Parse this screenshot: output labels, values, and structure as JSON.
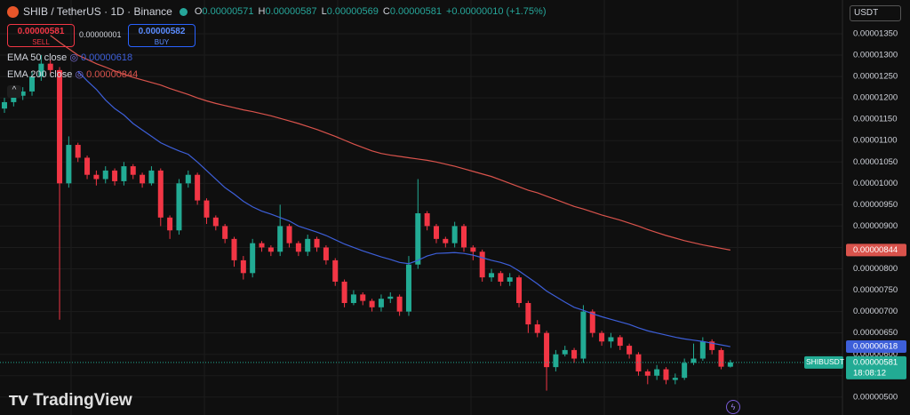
{
  "header": {
    "symbol": "SHIB / TetherUS · 1D · Binance",
    "o_label": "O",
    "open": "0.00000571",
    "h_label": "H",
    "high": "0.00000587",
    "l_label": "L",
    "low": "0.00000569",
    "c_label": "C",
    "close": "0.00000581",
    "change": "+0.00000010 (+1.75%)",
    "sell_price": "0.00000581",
    "sell": "SELL",
    "spread": "0.00000001",
    "buy_price": "0.00000582",
    "buy": "BUY",
    "currency": "USDT",
    "ticker": "SHIBUSDT",
    "last_price": "0.00000581",
    "countdown": "18:08:12",
    "brand": "TradingView"
  },
  "chart_data": {
    "type": "candlestick",
    "up_color": "#22ab94",
    "down_color": "#f23645",
    "grid": true,
    "open": [
      1.175e-05,
      1.19e-05,
      1.205e-05,
      1.215e-05,
      1.25e-05,
      1.28e-05,
      1.265e-05,
      1e-05,
      1.09e-05,
      1.06e-05,
      1.02e-05,
      1.01e-05,
      1.03e-05,
      1.005e-05,
      1.04e-05,
      1.02e-05,
      1e-05,
      1.03e-05,
      9.2e-06,
      8.9e-06,
      1e-05,
      1.02e-05,
      9.6e-06,
      9.2e-06,
      9e-06,
      8.7e-06,
      8.2e-06,
      7.9e-06,
      8.6e-06,
      8.5e-06,
      8.4e-06,
      9e-06,
      8.6e-06,
      8.4e-06,
      8.7e-06,
      8.5e-06,
      8.2e-06,
      7.7e-06,
      7.2e-06,
      7.4e-06,
      7.25e-06,
      7.1e-06,
      7.3e-06,
      7.35e-06,
      7e-06,
      8.1e-06,
      9.3e-06,
      9e-06,
      8.7e-06,
      8.6e-06,
      9e-06,
      8.5e-06,
      8.4e-06,
      7.8e-06,
      7.9e-06,
      7.7e-06,
      7.8e-06,
      7.2e-06,
      6.7e-06,
      6.5e-06,
      5.7e-06,
      6e-06,
      6.1e-06,
      5.9e-06,
      7e-06,
      6.5e-06,
      6.3e-06,
      6.4e-06,
      6.2e-06,
      6e-06,
      5.6e-06,
      5.5e-06,
      5.65e-06,
      5.4e-06,
      5.45e-06,
      5.8e-06,
      5.9e-06,
      6.3e-06,
      6.1e-06,
      5.71e-06
    ],
    "high": [
      1.2e-05,
      1.215e-05,
      1.225e-05,
      1.262e-05,
      1.3e-05,
      1.29e-05,
      1.272e-05,
      1.11e-05,
      1.095e-05,
      1.065e-05,
      1.03e-05,
      1.04e-05,
      1.035e-05,
      1.05e-05,
      1.045e-05,
      1.025e-05,
      1.04e-05,
      1.035e-05,
      9.25e-06,
      1.01e-05,
      1.03e-05,
      1.025e-05,
      9.65e-06,
      9.25e-06,
      9.05e-06,
      8.75e-06,
      8.3e-06,
      8.7e-06,
      8.65e-06,
      8.55e-06,
      9.5e-06,
      9.05e-06,
      8.65e-06,
      8.8e-06,
      8.75e-06,
      8.55e-06,
      8.25e-06,
      7.75e-06,
      7.5e-06,
      7.45e-06,
      7.3e-06,
      7.4e-06,
      7.45e-06,
      7.4e-06,
      8.3e-06,
      1.01e-05,
      9.35e-06,
      9.05e-06,
      8.75e-06,
      9.1e-06,
      9.05e-06,
      8.55e-06,
      8.45e-06,
      8e-06,
      7.95e-06,
      7.9e-06,
      7.85e-06,
      7.25e-06,
      6.8e-06,
      6.55e-06,
      6.1e-06,
      6.2e-06,
      6.15e-06,
      7.15e-06,
      7.05e-06,
      6.55e-06,
      6.5e-06,
      6.45e-06,
      6.25e-06,
      6.05e-06,
      5.65e-06,
      5.75e-06,
      5.7e-06,
      5.55e-06,
      5.9e-06,
      6.25e-06,
      6.4e-06,
      6.35e-06,
      6.15e-06,
      5.87e-06
    ],
    "low": [
      1.165e-05,
      1.18e-05,
      1.195e-05,
      1.205e-05,
      1.24e-05,
      1.255e-05,
      6.81e-06,
      9.9e-06,
      1.05e-05,
      1.01e-05,
      9.95e-06,
      1e-05,
      9.95e-06,
      9.95e-06,
      1.01e-05,
      9.9e-06,
      9.95e-06,
      9e-06,
      8.7e-06,
      8.8e-06,
      9.9e-06,
      9.5e-06,
      9.05e-06,
      8.9e-06,
      8.6e-06,
      8.05e-06,
      7.75e-06,
      7.8e-06,
      8.4e-06,
      8.3e-06,
      8.3e-06,
      8.5e-06,
      8.3e-06,
      8.3e-06,
      8.4e-06,
      8.1e-06,
      7.6e-06,
      7.1e-06,
      7.15e-06,
      7.15e-06,
      7e-06,
      7e-06,
      7.2e-06,
      6.9e-06,
      6.9e-06,
      8e-06,
      8.9e-06,
      8.6e-06,
      8.5e-06,
      8.5e-06,
      8.4e-06,
      8.2e-06,
      7.7e-06,
      7.7e-06,
      7.6e-06,
      7.6e-06,
      7.1e-06,
      6.5e-06,
      6.4e-06,
      5.15e-06,
      5.6e-06,
      5.95e-06,
      5.8e-06,
      5.8e-06,
      6.4e-06,
      6.2e-06,
      6.15e-06,
      6.1e-06,
      5.9e-06,
      5.5e-06,
      5.3e-06,
      5.4e-06,
      5.3e-06,
      5.3e-06,
      5.4e-06,
      5.75e-06,
      5.85e-06,
      6e-06,
      5.65e-06,
      5.69e-06
    ],
    "close": [
      1.19e-05,
      1.205e-05,
      1.215e-05,
      1.25e-05,
      1.28e-05,
      1.265e-05,
      1e-05,
      1.09e-05,
      1.06e-05,
      1.02e-05,
      1.01e-05,
      1.03e-05,
      1.005e-05,
      1.04e-05,
      1.02e-05,
      1e-05,
      1.03e-05,
      9.2e-06,
      8.9e-06,
      1e-05,
      1.02e-05,
      9.6e-06,
      9.2e-06,
      9e-06,
      8.7e-06,
      8.2e-06,
      7.9e-06,
      8.6e-06,
      8.5e-06,
      8.4e-06,
      9e-06,
      8.6e-06,
      8.4e-06,
      8.7e-06,
      8.5e-06,
      8.2e-06,
      7.7e-06,
      7.2e-06,
      7.4e-06,
      7.25e-06,
      7.1e-06,
      7.3e-06,
      7.35e-06,
      7e-06,
      8.1e-06,
      9.3e-06,
      9e-06,
      8.7e-06,
      8.6e-06,
      9e-06,
      8.5e-06,
      8.4e-06,
      7.8e-06,
      7.9e-06,
      7.7e-06,
      7.8e-06,
      7.2e-06,
      6.7e-06,
      6.5e-06,
      5.7e-06,
      6e-06,
      6.1e-06,
      5.9e-06,
      7e-06,
      6.5e-06,
      6.3e-06,
      6.4e-06,
      6.2e-06,
      6e-06,
      5.6e-06,
      5.5e-06,
      5.65e-06,
      5.4e-06,
      5.45e-06,
      5.8e-06,
      5.9e-06,
      6.3e-06,
      6.1e-06,
      5.71e-06,
      5.81e-06
    ],
    "series": [
      {
        "name": "EMA 50 close",
        "color": "#3d5fd9",
        "last_label": "0.00000618",
        "values": [
          null,
          null,
          null,
          null,
          null,
          null,
          null,
          null,
          1.262e-05,
          1.24e-05,
          1.22e-05,
          1.195e-05,
          1.175e-05,
          1.16e-05,
          1.14e-05,
          1.125e-05,
          1.11e-05,
          1.095e-05,
          1.085e-05,
          1.076e-05,
          1.068e-05,
          1.05e-05,
          1.03e-05,
          1.01e-05,
          9.9e-06,
          9.75e-06,
          9.58e-06,
          9.45e-06,
          9.35e-06,
          9.28e-06,
          9.2e-06,
          9.12e-06,
          9e-06,
          8.93e-06,
          8.86e-06,
          8.78e-06,
          8.68e-06,
          8.58e-06,
          8.5e-06,
          8.42e-06,
          8.35e-06,
          8.28e-06,
          8.22e-06,
          8.15e-06,
          8.12e-06,
          8.2e-06,
          8.3e-06,
          8.36e-06,
          8.37e-06,
          8.38e-06,
          8.36e-06,
          8.32e-06,
          8.26e-06,
          8.2e-06,
          8.15e-06,
          8.08e-06,
          7.95e-06,
          7.8e-06,
          7.65e-06,
          7.48e-06,
          7.35e-06,
          7.22e-06,
          7.1e-06,
          7.03e-06,
          6.95e-06,
          6.88e-06,
          6.82e-06,
          6.76e-06,
          6.7e-06,
          6.62e-06,
          6.55e-06,
          6.5e-06,
          6.45e-06,
          6.4e-06,
          6.36e-06,
          6.33e-06,
          6.3e-06,
          6.26e-06,
          6.22e-06,
          6.18e-06
        ]
      },
      {
        "name": "EMA 200 close",
        "color": "#d9534c",
        "last_label": "0.00000844",
        "values": [
          null,
          null,
          null,
          null,
          null,
          1.346e-05,
          1.33e-05,
          1.315e-05,
          1.3e-05,
          1.29e-05,
          1.28e-05,
          1.272e-05,
          1.263e-05,
          1.255e-05,
          1.248e-05,
          1.242e-05,
          1.236e-05,
          1.23e-05,
          1.222e-05,
          1.215e-05,
          1.208e-05,
          1.2e-05,
          1.193e-05,
          1.187e-05,
          1.182e-05,
          1.177e-05,
          1.172e-05,
          1.168e-05,
          1.163e-05,
          1.158e-05,
          1.152e-05,
          1.146e-05,
          1.14e-05,
          1.133e-05,
          1.126e-05,
          1.118e-05,
          1.11e-05,
          1.101e-05,
          1.092e-05,
          1.084e-05,
          1.076e-05,
          1.07e-05,
          1.066e-05,
          1.063e-05,
          1.06e-05,
          1.057e-05,
          1.054e-05,
          1.05e-05,
          1.045e-05,
          1.04e-05,
          1.034e-05,
          1.028e-05,
          1.022e-05,
          1.016e-05,
          1.008e-05,
          1e-05,
          9.92e-06,
          9.84e-06,
          9.78e-06,
          9.7e-06,
          9.62e-06,
          9.54e-06,
          9.46e-06,
          9.4e-06,
          9.33e-06,
          9.26e-06,
          9.2e-06,
          9.14e-06,
          9.07e-06,
          9e-06,
          8.92e-06,
          8.85e-06,
          8.78e-06,
          8.72e-06,
          8.66e-06,
          8.61e-06,
          8.56e-06,
          8.52e-06,
          8.48e-06,
          8.44e-06
        ]
      }
    ],
    "ylim": [
      4.58e-06,
      1.429e-05
    ],
    "yticks": [
      {
        "value": 1.35e-05,
        "label": "0.00001350"
      },
      {
        "value": 1.3e-05,
        "label": "0.00001300"
      },
      {
        "value": 1.25e-05,
        "label": "0.00001250"
      },
      {
        "value": 1.2e-05,
        "label": "0.00001200"
      },
      {
        "value": 1.15e-05,
        "label": "0.00001150"
      },
      {
        "value": 1.1e-05,
        "label": "0.00001100"
      },
      {
        "value": 1.05e-05,
        "label": "0.00001050"
      },
      {
        "value": 1e-05,
        "label": "0.00001000"
      },
      {
        "value": 9.5e-06,
        "label": "0.00000950"
      },
      {
        "value": 9e-06,
        "label": "0.00000900"
      },
      {
        "value": 8.5e-06,
        "label": "0.00000850"
      },
      {
        "value": 8e-06,
        "label": "0.00000800"
      },
      {
        "value": 7.5e-06,
        "label": "0.00000750"
      },
      {
        "value": 7e-06,
        "label": "0.00000700"
      },
      {
        "value": 6.5e-06,
        "label": "0.00000650"
      },
      {
        "value": 6e-06,
        "label": "0.00000600"
      },
      {
        "value": 5.5e-06,
        "label": "0.00000550"
      },
      {
        "value": 5e-06,
        "label": "0.00000500"
      }
    ]
  }
}
